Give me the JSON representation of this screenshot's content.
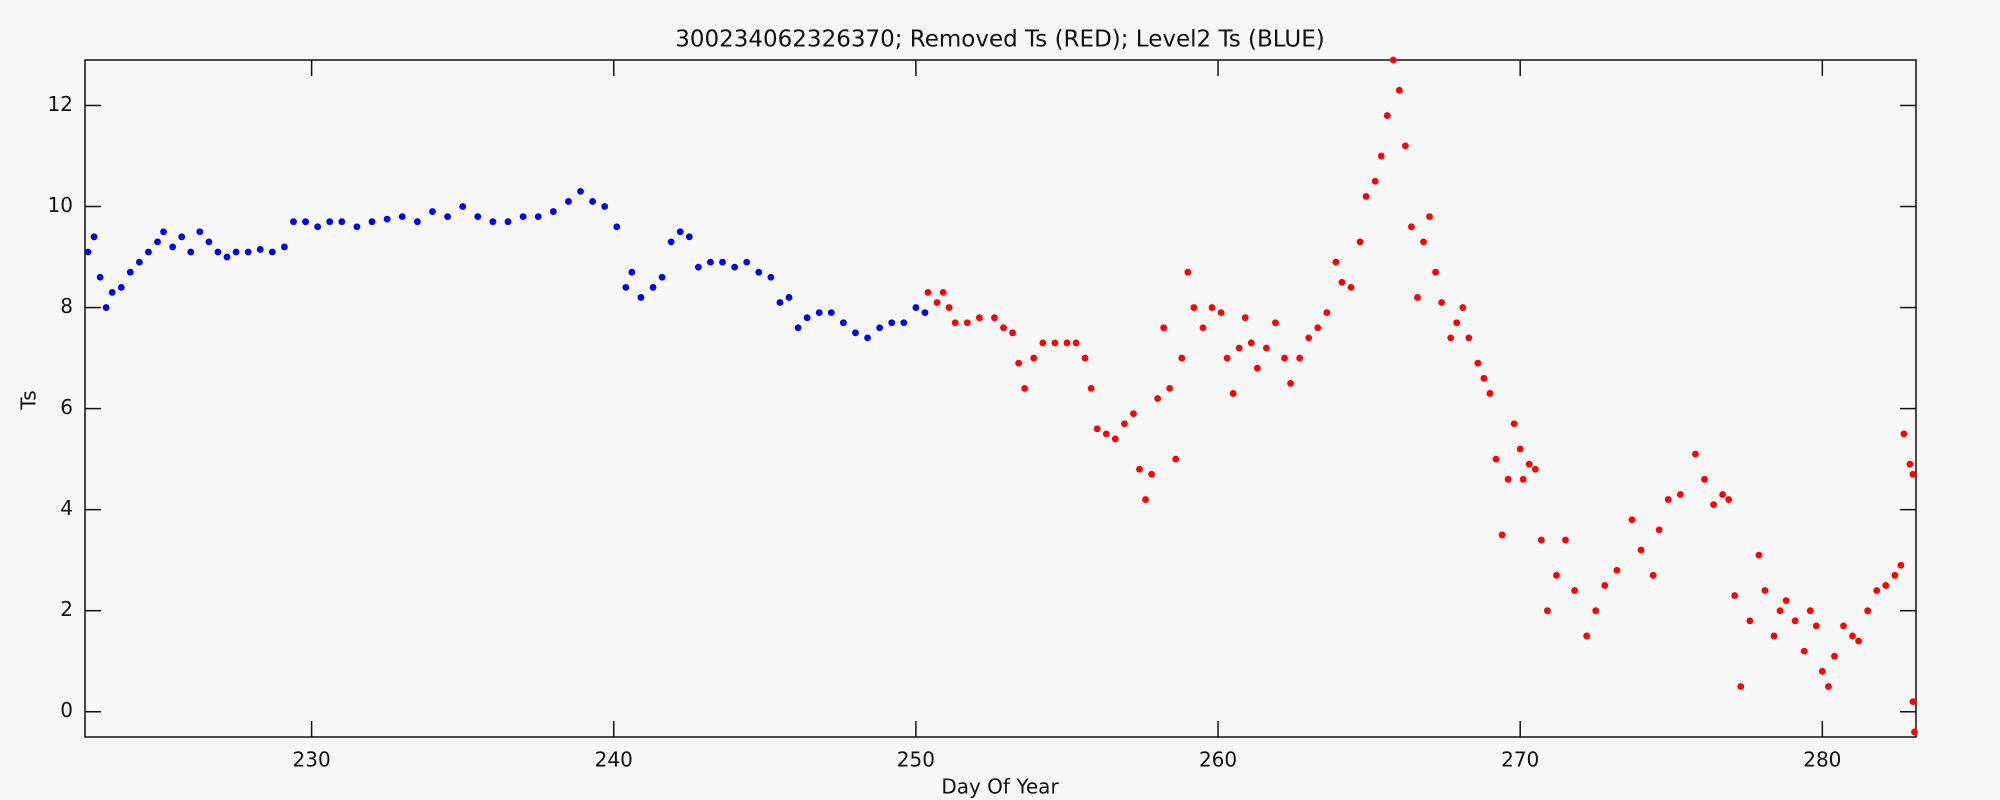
{
  "chart_data": {
    "type": "scatter",
    "title": "300234062326370; Removed Ts (RED); Level2 Ts (BLUE)",
    "x_label": "Day Of Year",
    "y_label": "Ts",
    "xlim": [
      222.5,
      283.1
    ],
    "xticks": [
      230,
      240,
      250,
      260,
      270,
      280
    ],
    "ylim": [
      -0.5,
      12.9
    ],
    "yticks": [
      0,
      2,
      4,
      6,
      8,
      10,
      12
    ],
    "series": [
      {
        "color": "#0000ee",
        "x": [
          222.6,
          222.8,
          223.0,
          223.2,
          223.4,
          223.7,
          224.0,
          224.3,
          224.6,
          224.9,
          225.1,
          225.4,
          225.7,
          226.0,
          226.3,
          226.6,
          226.9,
          227.2,
          227.5,
          227.9,
          228.3,
          228.7,
          229.1,
          229.4,
          229.8,
          230.2,
          230.6,
          231.0,
          231.5,
          232.0,
          232.5,
          233.0,
          233.5,
          234.0,
          234.5,
          235.0,
          235.5,
          236.0,
          236.5,
          237.0,
          237.5,
          238.0,
          238.5,
          238.9,
          239.3,
          239.7,
          240.1,
          240.4,
          240.6,
          240.9,
          241.3,
          241.6,
          241.9,
          242.2,
          242.5,
          242.8,
          243.2,
          243.6,
          244.0,
          244.4,
          244.8,
          245.2,
          245.5,
          245.8,
          246.1,
          246.4,
          246.8,
          247.2,
          247.6,
          248.0,
          248.4,
          248.8,
          249.2,
          249.6,
          250.0,
          250.3
        ],
        "values": [
          9.1,
          9.4,
          8.6,
          8.0,
          8.3,
          8.4,
          8.7,
          8.9,
          9.1,
          9.3,
          9.5,
          9.2,
          9.4,
          9.1,
          9.5,
          9.3,
          9.1,
          9.0,
          9.1,
          9.1,
          9.15,
          9.1,
          9.2,
          9.7,
          9.7,
          9.6,
          9.7,
          9.7,
          9.6,
          9.7,
          9.75,
          9.8,
          9.7,
          9.9,
          9.8,
          10.0,
          9.8,
          9.7,
          9.7,
          9.8,
          9.8,
          9.9,
          10.1,
          10.3,
          10.1,
          10.0,
          9.6,
          8.4,
          8.7,
          8.2,
          8.4,
          8.6,
          9.3,
          9.5,
          9.4,
          8.8,
          8.9,
          8.9,
          8.8,
          8.9,
          8.7,
          8.6,
          8.1,
          8.2,
          7.6,
          7.8,
          7.9,
          7.9,
          7.7,
          7.5,
          7.4,
          7.6,
          7.7,
          7.7,
          8.0,
          7.9
        ]
      },
      {
        "color": "#ff0000",
        "x": [
          250.4,
          250.7,
          250.9,
          251.1,
          251.3,
          251.7,
          252.1,
          252.6,
          252.9,
          253.2,
          253.4,
          253.6,
          253.9,
          254.2,
          254.6,
          255.0,
          255.3,
          255.6,
          255.8,
          256.0,
          256.3,
          256.6,
          256.9,
          257.2,
          257.4,
          257.6,
          257.8,
          258.0,
          258.2,
          258.4,
          258.6,
          258.8,
          259.0,
          259.2,
          259.5,
          259.8,
          260.1,
          260.3,
          260.5,
          260.7,
          260.9,
          261.1,
          261.3,
          261.6,
          261.9,
          262.2,
          262.4,
          262.7,
          263.0,
          263.3,
          263.6,
          263.9,
          264.1,
          264.4,
          264.7,
          264.9,
          265.2,
          265.4,
          265.6,
          265.8,
          266.0,
          266.2,
          266.4,
          266.6,
          266.8,
          267.0,
          267.2,
          267.4,
          267.7,
          267.9,
          268.1,
          268.3,
          268.6,
          268.8,
          269.0,
          269.2,
          269.4,
          269.6,
          269.8,
          270.0,
          270.1,
          270.3,
          270.5,
          270.7,
          270.9,
          271.2,
          271.5,
          271.8,
          272.2,
          272.5,
          272.8,
          273.2,
          273.7,
          274.0,
          274.4,
          274.6,
          274.9,
          275.3,
          275.8,
          276.1,
          276.4,
          276.7,
          276.9,
          277.1,
          277.3,
          277.6,
          277.9,
          278.1,
          278.4,
          278.6,
          278.8,
          279.1,
          279.4,
          279.6,
          279.8,
          280.0,
          280.2,
          280.4,
          280.7,
          281.0,
          281.2,
          281.5,
          281.8,
          282.1,
          282.4,
          282.6,
          282.7,
          282.9,
          283.0,
          283.0,
          283.05
        ],
        "values": [
          8.3,
          8.1,
          8.3,
          8.0,
          7.7,
          7.7,
          7.8,
          7.8,
          7.6,
          7.5,
          6.9,
          6.4,
          7.0,
          7.3,
          7.3,
          7.3,
          7.3,
          7.0,
          6.4,
          5.6,
          5.5,
          5.4,
          5.7,
          5.9,
          4.8,
          4.2,
          4.7,
          6.2,
          7.6,
          6.4,
          5.0,
          7.0,
          8.7,
          8.0,
          7.6,
          8.0,
          7.9,
          7.0,
          6.3,
          7.2,
          7.8,
          7.3,
          6.8,
          7.2,
          7.7,
          7.0,
          6.5,
          7.0,
          7.4,
          7.6,
          7.9,
          8.9,
          8.5,
          8.4,
          9.3,
          10.2,
          10.5,
          11.0,
          11.8,
          12.9,
          12.3,
          11.2,
          9.6,
          8.2,
          9.3,
          9.8,
          8.7,
          8.1,
          7.4,
          7.7,
          8.0,
          7.4,
          6.9,
          6.6,
          6.3,
          5.0,
          3.5,
          4.6,
          5.7,
          5.2,
          4.6,
          4.9,
          4.8,
          3.4,
          2.0,
          2.7,
          3.4,
          2.4,
          1.5,
          2.0,
          2.5,
          2.8,
          3.8,
          3.2,
          2.7,
          3.6,
          4.2,
          4.3,
          5.1,
          4.6,
          4.1,
          4.3,
          4.2,
          2.3,
          0.5,
          1.8,
          3.1,
          2.4,
          1.5,
          2.0,
          2.2,
          1.8,
          1.2,
          2.0,
          1.7,
          0.8,
          0.5,
          1.1,
          1.7,
          1.5,
          1.4,
          2.0,
          2.4,
          2.5,
          2.7,
          2.9,
          5.5,
          4.9,
          4.7,
          0.2,
          -0.4
        ]
      }
    ]
  }
}
